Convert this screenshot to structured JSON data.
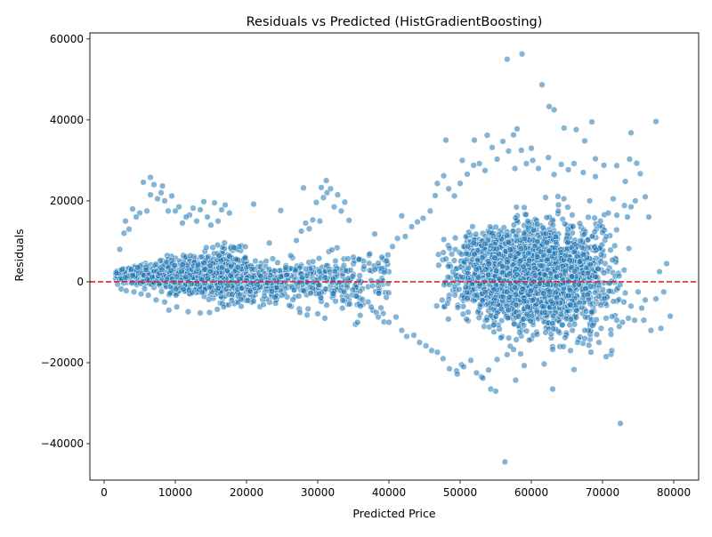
{
  "chart_data": {
    "type": "scatter",
    "title": "Residuals vs Predicted (HistGradientBoosting)",
    "xlabel": "Predicted Price",
    "ylabel": "Residuals",
    "xlim": [
      -2000,
      83500
    ],
    "ylim": [
      -49000,
      61500
    ],
    "x_ticks": [
      0,
      10000,
      20000,
      30000,
      40000,
      50000,
      60000,
      70000,
      80000
    ],
    "y_ticks": [
      -40000,
      -20000,
      0,
      20000,
      40000,
      60000
    ],
    "grid": false,
    "legend": "none",
    "reference_line": {
      "y": 0,
      "color": "#d62728",
      "style": "dashed"
    },
    "point_color": "#1f77b4",
    "series": [
      {
        "values": [
          [
            56600,
            55000
          ],
          [
            58700,
            56300
          ],
          [
            61500,
            48700
          ],
          [
            62500,
            43300
          ],
          [
            63200,
            42500
          ],
          [
            74000,
            36800
          ],
          [
            77500,
            39600
          ],
          [
            68500,
            39500
          ],
          [
            48000,
            35000
          ],
          [
            46800,
            24300
          ],
          [
            6500,
            25800
          ],
          [
            8200,
            23700
          ],
          [
            31200,
            25000
          ],
          [
            30500,
            23300
          ],
          [
            28000,
            23200
          ],
          [
            21000,
            19200
          ],
          [
            24800,
            17600
          ],
          [
            72500,
            -35000
          ],
          [
            56300,
            -44500
          ],
          [
            63000,
            -26500
          ],
          [
            55000,
            -27000
          ],
          [
            54300,
            -26500
          ],
          [
            57800,
            -24300
          ],
          [
            66000,
            -21700
          ],
          [
            70500,
            -18500
          ],
          [
            71300,
            -17000
          ],
          [
            67500,
            -14000
          ],
          [
            2500,
            3000
          ],
          [
            4000,
            18000
          ],
          [
            3000,
            15000
          ],
          [
            35300,
            -10500
          ],
          [
            35600,
            -10000
          ],
          [
            20200,
            -4600
          ],
          [
            21000,
            -4800
          ],
          [
            78000,
            2500
          ],
          [
            79500,
            -8500
          ],
          [
            78600,
            -2500
          ],
          [
            79000,
            4500
          ],
          [
            76800,
            -12000
          ],
          [
            76000,
            21000
          ],
          [
            75300,
            26700
          ],
          [
            74800,
            29300
          ],
          [
            73800,
            30300
          ],
          [
            73200,
            24800
          ],
          [
            72800,
            -10000
          ],
          [
            72000,
            28700
          ],
          [
            70200,
            28800
          ],
          [
            69000,
            30400
          ],
          [
            67500,
            34800
          ],
          [
            66300,
            37600
          ],
          [
            64600,
            38000
          ],
          [
            60000,
            33000
          ],
          [
            58000,
            37800
          ],
          [
            57500,
            36300
          ],
          [
            53800,
            36200
          ],
          [
            52000,
            35000
          ],
          [
            50300,
            30000
          ],
          [
            49500,
            -22000
          ],
          [
            50200,
            -20500
          ],
          [
            53000,
            -23500
          ],
          [
            59000,
            -20700
          ],
          [
            61800,
            -20300
          ],
          [
            64000,
            -16000
          ],
          [
            68000,
            -12000
          ],
          [
            69500,
            -15000
          ],
          [
            74500,
            -9500
          ],
          [
            75500,
            -6500
          ],
          [
            75800,
            -9500
          ],
          [
            76500,
            16000
          ],
          [
            74600,
            20000
          ],
          [
            73500,
            16000
          ],
          [
            74000,
            18500
          ],
          [
            71500,
            20500
          ],
          [
            70800,
            17000
          ],
          [
            69700,
            15000
          ],
          [
            69000,
            26000
          ],
          [
            68200,
            20000
          ],
          [
            67300,
            27000
          ],
          [
            66000,
            29200
          ],
          [
            65200,
            27700
          ],
          [
            64200,
            29000
          ],
          [
            63200,
            26500
          ],
          [
            62400,
            30700
          ],
          [
            61000,
            28000
          ],
          [
            60200,
            30000
          ],
          [
            59300,
            29200
          ],
          [
            58600,
            32500
          ],
          [
            57700,
            28000
          ],
          [
            56800,
            32300
          ],
          [
            56000,
            34700
          ],
          [
            55200,
            30300
          ],
          [
            54500,
            33200
          ],
          [
            53500,
            27500
          ],
          [
            52700,
            29200
          ],
          [
            51900,
            28800
          ],
          [
            51000,
            26600
          ],
          [
            50000,
            24300
          ],
          [
            49200,
            21200
          ],
          [
            48400,
            23000
          ],
          [
            47700,
            26200
          ],
          [
            46500,
            21300
          ],
          [
            45800,
            17500
          ],
          [
            44800,
            15700
          ],
          [
            44000,
            14800
          ],
          [
            43200,
            13600
          ],
          [
            42300,
            11200
          ],
          [
            41800,
            16300
          ],
          [
            41200,
            10700
          ],
          [
            40500,
            8700
          ],
          [
            39700,
            5200
          ],
          [
            39000,
            6100
          ],
          [
            38500,
            4600
          ],
          [
            38000,
            11800
          ],
          [
            37300,
            6900
          ],
          [
            36500,
            3800
          ],
          [
            35800,
            5600
          ],
          [
            35000,
            6100
          ],
          [
            34400,
            15200
          ],
          [
            33800,
            19700
          ],
          [
            33300,
            17500
          ],
          [
            32800,
            21500
          ],
          [
            32300,
            18500
          ],
          [
            31800,
            23000
          ],
          [
            31300,
            22000
          ],
          [
            30800,
            20800
          ],
          [
            30300,
            15000
          ],
          [
            29800,
            19600
          ],
          [
            29300,
            15300
          ],
          [
            28800,
            13100
          ],
          [
            28300,
            14500
          ],
          [
            27700,
            12500
          ],
          [
            27000,
            10200
          ],
          [
            26200,
            6500
          ],
          [
            25500,
            3500
          ],
          [
            24800,
            1300
          ],
          [
            24000,
            2700
          ],
          [
            23200,
            9600
          ],
          [
            22600,
            2000
          ],
          [
            22000,
            1400
          ],
          [
            21500,
            -700
          ],
          [
            20800,
            1000
          ],
          [
            20000,
            300
          ],
          [
            19300,
            -1600
          ],
          [
            18800,
            3600
          ],
          [
            18200,
            8500
          ],
          [
            17600,
            17000
          ],
          [
            17000,
            19000
          ],
          [
            16500,
            17800
          ],
          [
            16000,
            15000
          ],
          [
            15500,
            19500
          ],
          [
            15000,
            14000
          ],
          [
            14500,
            16000
          ],
          [
            14000,
            19800
          ],
          [
            13500,
            17800
          ],
          [
            13000,
            15000
          ],
          [
            12500,
            18200
          ],
          [
            12000,
            16500
          ],
          [
            11500,
            16000
          ],
          [
            11000,
            14500
          ],
          [
            10500,
            18500
          ],
          [
            10000,
            17500
          ],
          [
            9500,
            21200
          ],
          [
            9000,
            17500
          ],
          [
            8500,
            20000
          ],
          [
            8000,
            22000
          ],
          [
            7500,
            20500
          ],
          [
            7000,
            24000
          ],
          [
            6500,
            21500
          ],
          [
            6000,
            17500
          ],
          [
            5500,
            24600
          ],
          [
            5000,
            17000
          ],
          [
            4500,
            16000
          ],
          [
            3500,
            13000
          ],
          [
            2800,
            12000
          ],
          [
            2200,
            8000
          ],
          [
            1700,
            2200
          ],
          [
            1900,
            -600
          ],
          [
            2400,
            -1800
          ],
          [
            3100,
            -2200
          ],
          [
            4200,
            -2500
          ],
          [
            5200,
            -3000
          ],
          [
            6200,
            -3300
          ],
          [
            7300,
            -4500
          ],
          [
            8500,
            -5000
          ],
          [
            9100,
            -7000
          ],
          [
            10200,
            -6200
          ],
          [
            11800,
            -7400
          ],
          [
            13500,
            -7700
          ],
          [
            14800,
            -7600
          ],
          [
            15900,
            -6800
          ],
          [
            16800,
            -6200
          ],
          [
            17500,
            -5700
          ],
          [
            19200,
            -4300
          ],
          [
            22500,
            -3500
          ],
          [
            24000,
            -3800
          ],
          [
            26000,
            -5800
          ],
          [
            27500,
            -7600
          ],
          [
            28500,
            -8200
          ],
          [
            30000,
            -7900
          ],
          [
            31000,
            -9000
          ],
          [
            32500,
            -4800
          ],
          [
            33500,
            -4600
          ],
          [
            34500,
            -5500
          ],
          [
            36000,
            -6000
          ],
          [
            37500,
            -6200
          ],
          [
            38500,
            -8700
          ],
          [
            39200,
            -7800
          ],
          [
            40000,
            -10000
          ],
          [
            41000,
            -8700
          ],
          [
            41800,
            -12000
          ],
          [
            42500,
            -13500
          ],
          [
            43500,
            -13200
          ],
          [
            44300,
            -15000
          ],
          [
            45200,
            -15800
          ],
          [
            46000,
            -17000
          ],
          [
            46800,
            -17400
          ],
          [
            47600,
            -19000
          ],
          [
            48500,
            -21500
          ],
          [
            49600,
            -22800
          ],
          [
            50500,
            -21000
          ],
          [
            51500,
            -19400
          ],
          [
            52300,
            -22500
          ],
          [
            53200,
            -23800
          ],
          [
            54000,
            -21800
          ],
          [
            55200,
            -19200
          ],
          [
            56600,
            -18000
          ],
          [
            57500,
            -16700
          ],
          [
            58500,
            -17800
          ],
          [
            59700,
            -14400
          ],
          [
            60800,
            -13000
          ],
          [
            62000,
            -12500
          ],
          [
            63000,
            -16700
          ],
          [
            64500,
            -16000
          ],
          [
            65500,
            -17000
          ],
          [
            66500,
            -15000
          ],
          [
            67500,
            -12000
          ],
          [
            68600,
            -10800
          ],
          [
            69800,
            -11500
          ],
          [
            70500,
            -9000
          ],
          [
            71200,
            -13000
          ],
          [
            72000,
            -9500
          ],
          [
            73000,
            -5000
          ],
          [
            74000,
            -6000
          ],
          [
            75000,
            -2500
          ],
          [
            76000,
            -4500
          ],
          [
            77500,
            -4200
          ],
          [
            78200,
            -11500
          ]
        ]
      }
    ],
    "point_cloud": {
      "base_x_range": [
        1600,
        20000
      ],
      "mid_x_range": [
        20000,
        40000
      ],
      "main_x_range": [
        40000,
        80000
      ]
    }
  }
}
